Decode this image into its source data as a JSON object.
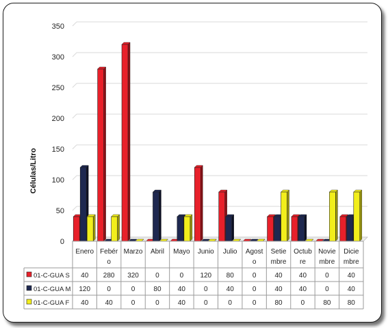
{
  "chart_data": {
    "type": "bar",
    "ylabel": "Células/Litro",
    "ylim": [
      0,
      350
    ],
    "yticks": [
      0,
      50,
      100,
      150,
      200,
      250,
      300,
      350
    ],
    "grid": true,
    "categories": [
      [
        "Enero"
      ],
      [
        "Febér",
        "o"
      ],
      [
        "Marzo"
      ],
      [
        "Abril"
      ],
      [
        "Mayo"
      ],
      [
        "Junio"
      ],
      [
        "Julio"
      ],
      [
        "Agost",
        "o"
      ],
      [
        "Setie",
        "mbre"
      ],
      [
        "Octub",
        "re"
      ],
      [
        "Novie",
        "mbre"
      ],
      [
        "Dicie",
        "mbre"
      ]
    ],
    "series": [
      {
        "name": "01-C-GUA S",
        "color": "#e8202a",
        "dark": "#8c0f14",
        "values": [
          40,
          280,
          320,
          0,
          0,
          120,
          80,
          0,
          40,
          40,
          0,
          40
        ]
      },
      {
        "name": "01-C-GUA M",
        "color": "#1e2850",
        "dark": "#0b0f22",
        "values": [
          120,
          0,
          0,
          80,
          40,
          0,
          40,
          0,
          40,
          40,
          0,
          40
        ]
      },
      {
        "name": "01-C-GUA F",
        "color": "#f2ee1c",
        "dark": "#9a960c",
        "values": [
          40,
          40,
          0,
          0,
          40,
          0,
          0,
          0,
          80,
          0,
          80,
          80
        ]
      }
    ]
  }
}
